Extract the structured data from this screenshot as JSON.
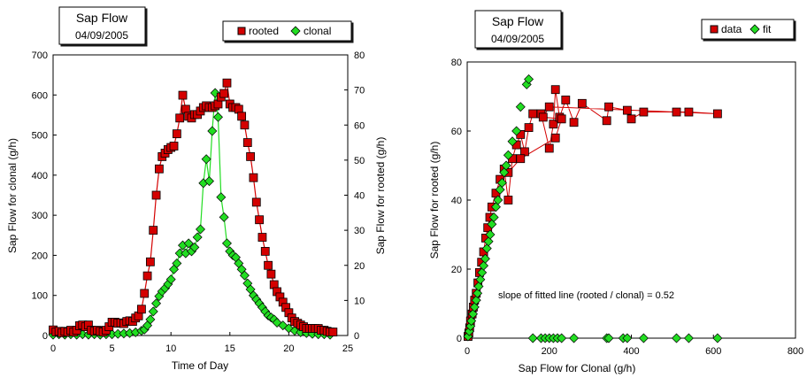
{
  "colors": {
    "red": "#d40000",
    "green": "#22dd22",
    "marker_outline": "#000000"
  },
  "chart_data": [
    {
      "type": "line",
      "title": "Sap Flow",
      "subtitle": "04/09/2005",
      "xlabel": "Time of Day",
      "ylabel_left": "Sap Flow for clonal (g/h)",
      "ylabel_right": "Sap Flow for rooted (g/h)",
      "xlim": [
        0,
        25
      ],
      "ylim_left": [
        0,
        700
      ],
      "ylim_right": [
        0,
        80
      ],
      "xticks": [
        0,
        5,
        10,
        15,
        20,
        25
      ],
      "yticks_left": [
        0,
        100,
        200,
        300,
        400,
        500,
        600,
        700
      ],
      "yticks_right": [
        0,
        10,
        20,
        30,
        40,
        50,
        60,
        70,
        80
      ],
      "legend_position": "top-right",
      "series": [
        {
          "name": "rooted",
          "axis": "right",
          "color": "red",
          "marker": "square",
          "points": [
            [
              0.0,
              1.6
            ],
            [
              0.25,
              1.0
            ],
            [
              0.5,
              1.2
            ],
            [
              0.75,
              0.8
            ],
            [
              1.0,
              1.2
            ],
            [
              1.25,
              1.0
            ],
            [
              1.5,
              1.5
            ],
            [
              1.75,
              1.0
            ],
            [
              2.0,
              1.5
            ],
            [
              2.25,
              2.8
            ],
            [
              2.5,
              3.0
            ],
            [
              2.75,
              2.5
            ],
            [
              3.0,
              3.0
            ],
            [
              3.25,
              1.5
            ],
            [
              3.5,
              1.2
            ],
            [
              3.75,
              1.5
            ],
            [
              4.0,
              1.2
            ],
            [
              4.25,
              1.0
            ],
            [
              4.5,
              1.5
            ],
            [
              4.75,
              2.5
            ],
            [
              5.0,
              3.8
            ],
            [
              5.25,
              3.8
            ],
            [
              5.5,
              3.5
            ],
            [
              5.75,
              3.6
            ],
            [
              6.0,
              3.4
            ],
            [
              6.25,
              4.0
            ],
            [
              6.5,
              4.2
            ],
            [
              6.75,
              4.0
            ],
            [
              7.0,
              5.0
            ],
            [
              7.25,
              5.6
            ],
            [
              7.5,
              7.5
            ],
            [
              7.75,
              12.0
            ],
            [
              8.0,
              17.0
            ],
            [
              8.25,
              21.0
            ],
            [
              8.5,
              30.0
            ],
            [
              8.75,
              40.0
            ],
            [
              9.0,
              47.5
            ],
            [
              9.25,
              51.0
            ],
            [
              9.5,
              52.0
            ],
            [
              9.75,
              53.0
            ],
            [
              10.0,
              53.6
            ],
            [
              10.25,
              54.0
            ],
            [
              10.5,
              57.5
            ],
            [
              10.75,
              62.0
            ],
            [
              11.0,
              68.5
            ],
            [
              11.25,
              64.5
            ],
            [
              11.5,
              62.5
            ],
            [
              11.75,
              62.0
            ],
            [
              12.0,
              63.0
            ],
            [
              12.25,
              63.0
            ],
            [
              12.5,
              64.0
            ],
            [
              12.75,
              65.0
            ],
            [
              13.0,
              65.5
            ],
            [
              13.25,
              65.0
            ],
            [
              13.5,
              65.0
            ],
            [
              13.75,
              65.5
            ],
            [
              14.0,
              66.0
            ],
            [
              14.25,
              68.0
            ],
            [
              14.5,
              69.0
            ],
            [
              14.75,
              72.0
            ],
            [
              15.0,
              66.0
            ],
            [
              15.25,
              65.0
            ],
            [
              15.5,
              65.0
            ],
            [
              15.75,
              64.5
            ],
            [
              16.0,
              62.5
            ],
            [
              16.25,
              60.0
            ],
            [
              16.5,
              55.0
            ],
            [
              16.75,
              51.0
            ],
            [
              17.0,
              45.0
            ],
            [
              17.25,
              38.0
            ],
            [
              17.5,
              33.0
            ],
            [
              17.75,
              28.0
            ],
            [
              18.0,
              24.0
            ],
            [
              18.25,
              20.0
            ],
            [
              18.5,
              17.5
            ],
            [
              18.75,
              14.5
            ],
            [
              19.0,
              12.5
            ],
            [
              19.25,
              11.0
            ],
            [
              19.5,
              9.5
            ],
            [
              19.75,
              8.0
            ],
            [
              20.0,
              6.5
            ],
            [
              20.25,
              5.0
            ],
            [
              20.5,
              4.0
            ],
            [
              20.75,
              3.5
            ],
            [
              21.0,
              3.0
            ],
            [
              21.25,
              2.5
            ],
            [
              21.5,
              2.0
            ],
            [
              21.75,
              2.0
            ],
            [
              22.0,
              2.0
            ],
            [
              22.25,
              2.0
            ],
            [
              22.5,
              2.0
            ],
            [
              22.75,
              1.5
            ],
            [
              23.0,
              1.5
            ],
            [
              23.25,
              1.2
            ],
            [
              23.5,
              1.0
            ],
            [
              23.75,
              1.0
            ]
          ]
        },
        {
          "name": "clonal",
          "axis": "left",
          "color": "green",
          "marker": "diamond",
          "points": [
            [
              0.0,
              2
            ],
            [
              0.5,
              3
            ],
            [
              1.0,
              2
            ],
            [
              1.5,
              3
            ],
            [
              2.0,
              2
            ],
            [
              2.5,
              3
            ],
            [
              3.0,
              2
            ],
            [
              3.5,
              3
            ],
            [
              4.0,
              2
            ],
            [
              4.5,
              3
            ],
            [
              5.0,
              3
            ],
            [
              5.5,
              4
            ],
            [
              6.0,
              5
            ],
            [
              6.5,
              6
            ],
            [
              7.0,
              8
            ],
            [
              7.5,
              12
            ],
            [
              7.75,
              15
            ],
            [
              8.0,
              25
            ],
            [
              8.25,
              40
            ],
            [
              8.5,
              60
            ],
            [
              8.75,
              80
            ],
            [
              9.0,
              98
            ],
            [
              9.25,
              110
            ],
            [
              9.5,
              118
            ],
            [
              9.75,
              128
            ],
            [
              10.0,
              140
            ],
            [
              10.25,
              165
            ],
            [
              10.5,
              180
            ],
            [
              10.75,
              205
            ],
            [
              11.0,
              225
            ],
            [
              11.25,
              205
            ],
            [
              11.5,
              230
            ],
            [
              11.75,
              210
            ],
            [
              12.0,
              220
            ],
            [
              12.25,
              245
            ],
            [
              12.5,
              265
            ],
            [
              12.75,
              380
            ],
            [
              13.0,
              440
            ],
            [
              13.25,
              385
            ],
            [
              13.5,
              510
            ],
            [
              13.75,
              605
            ],
            [
              14.0,
              545
            ],
            [
              14.25,
              345
            ],
            [
              14.5,
              295
            ],
            [
              14.75,
              230
            ],
            [
              15.0,
              210
            ],
            [
              15.25,
              200
            ],
            [
              15.5,
              195
            ],
            [
              15.75,
              180
            ],
            [
              16.0,
              165
            ],
            [
              16.25,
              150
            ],
            [
              16.5,
              130
            ],
            [
              16.75,
              115
            ],
            [
              17.0,
              100
            ],
            [
              17.25,
              90
            ],
            [
              17.5,
              80
            ],
            [
              17.75,
              70
            ],
            [
              18.0,
              60
            ],
            [
              18.25,
              50
            ],
            [
              18.5,
              45
            ],
            [
              18.75,
              40
            ],
            [
              19.0,
              32
            ],
            [
              19.5,
              25
            ],
            [
              20.0,
              18
            ],
            [
              20.5,
              12
            ],
            [
              21.0,
              8
            ],
            [
              21.5,
              6
            ],
            [
              22.0,
              4
            ],
            [
              22.5,
              3
            ],
            [
              23.0,
              3
            ],
            [
              23.5,
              2
            ]
          ]
        }
      ]
    },
    {
      "type": "scatter",
      "title": "Sap Flow",
      "subtitle": "04/09/2005",
      "xlabel": "Sap Flow  for Clonal (g/h)",
      "ylabel": "Sap Flow for rooted (g/h)",
      "xlim": [
        0,
        800
      ],
      "ylim": [
        0,
        80
      ],
      "xticks": [
        0,
        200,
        400,
        600,
        800
      ],
      "yticks": [
        0,
        20,
        40,
        60,
        80
      ],
      "legend_position": "top-right",
      "annotation": "slope of fitted line (rooted / clonal) = 0.52",
      "series": [
        {
          "name": "data",
          "color": "red",
          "marker": "square",
          "connected": true,
          "points": [
            [
              2,
              0.5
            ],
            [
              4,
              1.5
            ],
            [
              6,
              3
            ],
            [
              8,
              5
            ],
            [
              12,
              7
            ],
            [
              15,
              9
            ],
            [
              18,
              11
            ],
            [
              22,
              13
            ],
            [
              26,
              16
            ],
            [
              30,
              19
            ],
            [
              35,
              22
            ],
            [
              40,
              25
            ],
            [
              45,
              29
            ],
            [
              50,
              32
            ],
            [
              55,
              35
            ],
            [
              60,
              38
            ],
            [
              70,
              42
            ],
            [
              80,
              46
            ],
            [
              90,
              49
            ],
            [
              100,
              40
            ],
            [
              110,
              52
            ],
            [
              120,
              56
            ],
            [
              130,
              59
            ],
            [
              140,
              54
            ],
            [
              150,
              61
            ],
            [
              160,
              65
            ],
            [
              180,
              65
            ],
            [
              200,
              55
            ],
            [
              210,
              62
            ],
            [
              215,
              72
            ],
            [
              225,
              64
            ],
            [
              240,
              69
            ],
            [
              260,
              62.5
            ],
            [
              280,
              68
            ],
            [
              340,
              63
            ],
            [
              345,
              67
            ],
            [
              390,
              66
            ],
            [
              400,
              63.5
            ],
            [
              430,
              65.5
            ],
            [
              510,
              65.5
            ],
            [
              540,
              65.5
            ],
            [
              610,
              65
            ],
            [
              200,
              67
            ],
            [
              185,
              64
            ],
            [
              230,
              63.5
            ],
            [
              215,
              58
            ],
            [
              130,
              52
            ],
            [
              100,
              48
            ]
          ]
        },
        {
          "name": "fit",
          "color": "green",
          "marker": "diamond",
          "connected": false,
          "points": [
            [
              2,
              0.5
            ],
            [
              5,
              2
            ],
            [
              8,
              3.5
            ],
            [
              10,
              5
            ],
            [
              14,
              7
            ],
            [
              18,
              9
            ],
            [
              22,
              11
            ],
            [
              25,
              13
            ],
            [
              28,
              15
            ],
            [
              32,
              17
            ],
            [
              36,
              19
            ],
            [
              40,
              21
            ],
            [
              44,
              23
            ],
            [
              48,
              26
            ],
            [
              52,
              28
            ],
            [
              56,
              30
            ],
            [
              60,
              33
            ],
            [
              65,
              35
            ],
            [
              70,
              38
            ],
            [
              75,
              40
            ],
            [
              80,
              43
            ],
            [
              85,
              45
            ],
            [
              90,
              48
            ],
            [
              95,
              50
            ],
            [
              100,
              53
            ],
            [
              110,
              57
            ],
            [
              120,
              60
            ],
            [
              130,
              67
            ],
            [
              145,
              73.5
            ],
            [
              150,
              75
            ],
            [
              160,
              0
            ],
            [
              180,
              0
            ],
            [
              190,
              0
            ],
            [
              200,
              0
            ],
            [
              210,
              0
            ],
            [
              220,
              0
            ],
            [
              230,
              0
            ],
            [
              260,
              0
            ],
            [
              340,
              0
            ],
            [
              345,
              0
            ],
            [
              380,
              0
            ],
            [
              390,
              0
            ],
            [
              430,
              0
            ],
            [
              510,
              0
            ],
            [
              540,
              0
            ],
            [
              610,
              0
            ]
          ]
        }
      ]
    }
  ]
}
